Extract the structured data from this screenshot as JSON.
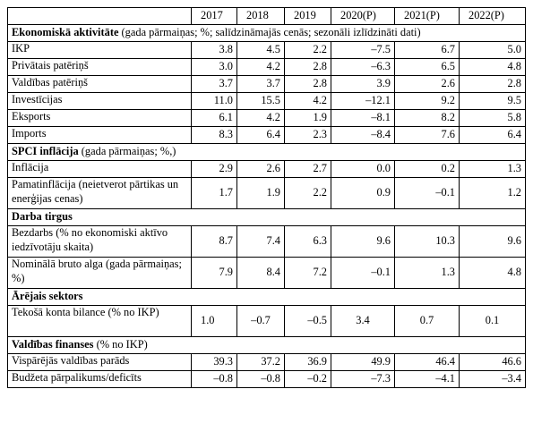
{
  "columns": [
    "2017",
    "2018",
    "2019",
    "2020(P)",
    "2021(P)",
    "2022(P)"
  ],
  "sections": [
    {
      "title_bold": "Ekonomiskā aktivitāte",
      "title_rest": " (gada pārmaiņas; %; salīdzināmajās cenās; sezonāli izlīdzināti dati)",
      "rows": [
        {
          "label": "IKP",
          "values": [
            "3.8",
            "4.5",
            "2.2",
            "–7.5",
            "6.7",
            "5.0"
          ]
        },
        {
          "label": "Privātais patēriņš",
          "values": [
            "3.0",
            "4.2",
            "2.8",
            "–6.3",
            "6.5",
            "4.8"
          ]
        },
        {
          "label": "Valdības patēriņš",
          "values": [
            "3.7",
            "3.7",
            "2.8",
            "3.9",
            "2.6",
            "2.8"
          ]
        },
        {
          "label": "Investīcijas",
          "values": [
            "11.0",
            "15.5",
            "4.2",
            "–12.1",
            "9.2",
            "9.5"
          ]
        },
        {
          "label": "Eksports",
          "values": [
            "6.1",
            "4.2",
            "1.9",
            "–8.1",
            "8.2",
            "5.8"
          ]
        },
        {
          "label": "Imports",
          "values": [
            "8.3",
            "6.4",
            "2.3",
            "–8.4",
            "7.6",
            "6.4"
          ]
        }
      ]
    },
    {
      "title_bold": "SPCI inflācija",
      "title_rest": " (gada pārmaiņas; %,)",
      "rows": [
        {
          "label": "Inflācija",
          "values": [
            "2.9",
            "2.6",
            "2.7",
            "0.0",
            "0.2",
            "1.3"
          ]
        },
        {
          "label": "Pamatinflācija (neietverot pārtikas un enerģijas cenas)",
          "values": [
            "1.7",
            "1.9",
            "2.2",
            "0.9",
            "–0.1",
            "1.2"
          ]
        }
      ]
    },
    {
      "title_bold": "Darba tirgus",
      "title_rest": "",
      "rows": [
        {
          "label": "Bezdarbs (% no ekonomiski aktīvo iedzīvotāju skaita)",
          "values": [
            "8.7",
            "7.4",
            "6.3",
            "9.6",
            "10.3",
            "9.6"
          ]
        },
        {
          "label": "Nominālā bruto alga (gada pārmaiņas; %)",
          "values": [
            "7.9",
            "8.4",
            "7.2",
            "–0.1",
            "1.3",
            "4.8"
          ]
        }
      ]
    },
    {
      "title_bold": "Ārējais sektors",
      "title_rest": "",
      "rows": [
        {
          "label": "Tekošā konta bilance (% no IKP)",
          "values": [
            "1.0",
            "–0.7",
            "–0.5",
            "3.4",
            "0.7",
            "0.1"
          ]
        }
      ]
    },
    {
      "title_bold": "Valdības finanses",
      "title_rest": " (% no IKP)",
      "rows": [
        {
          "label": "Vispārējās valdības parāds",
          "values": [
            "39.3",
            "37.2",
            "36.9",
            "49.9",
            "46.4",
            "46.6"
          ]
        },
        {
          "label": "Budžeta pārpalikums/deficīts",
          "values": [
            "–0.8",
            "–0.8",
            "–0.2",
            "–7.3",
            "–4.1",
            "–3.4"
          ]
        }
      ]
    }
  ]
}
